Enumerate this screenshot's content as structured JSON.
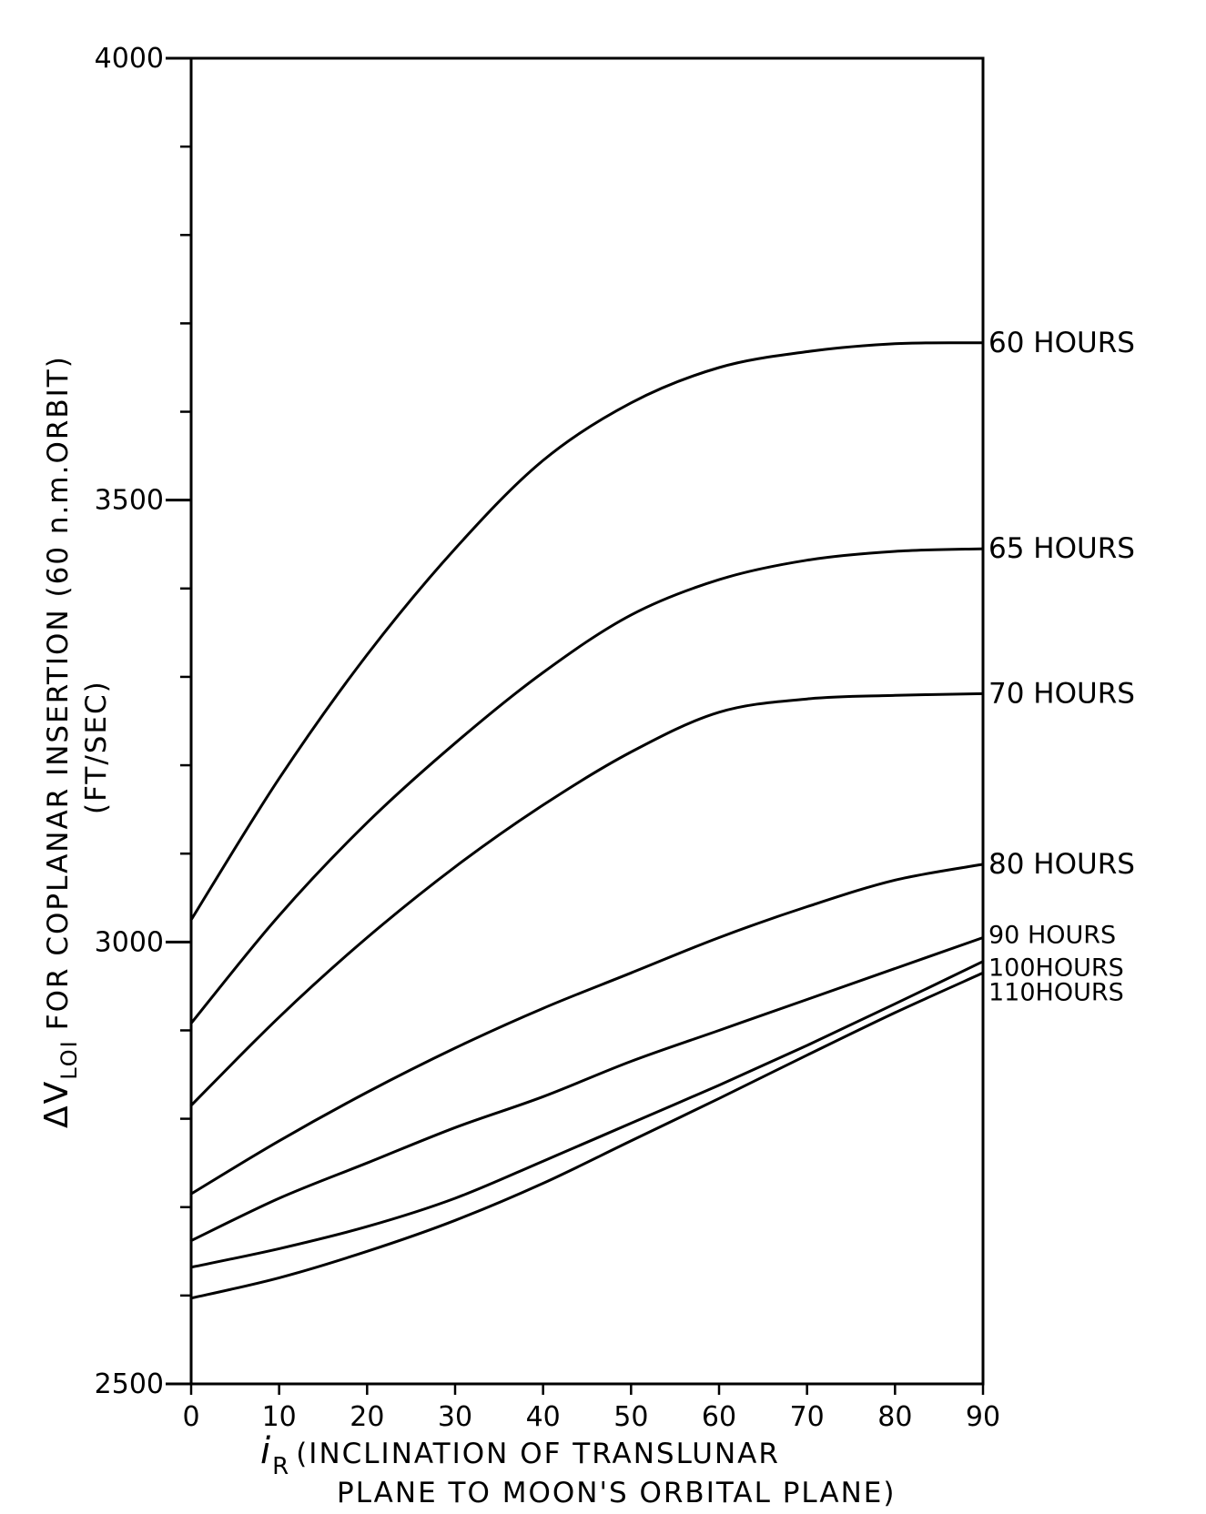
{
  "chart_data": {
    "type": "line",
    "title": "",
    "ylabel": "ΔV",
    "ylabel_subscript": "LOI",
    "ylabel_rest": "FOR COPLANAR INSERTION (60 n.m.ORBIT)",
    "ylabel_units": "(FT/SEC)",
    "xlabel_symbol": "i",
    "xlabel_subscript": "R",
    "xlabel_line1": "(INCLINATION OF TRANSLUNAR",
    "xlabel_line2": "PLANE TO MOON'S ORBITAL PLANE)",
    "xlim": [
      0,
      90
    ],
    "ylim": [
      2500,
      4000
    ],
    "x_ticks": [
      0,
      10,
      20,
      30,
      40,
      50,
      60,
      70,
      80,
      90
    ],
    "y_tick_labels": [
      "2500",
      "3000",
      "3500",
      "4000"
    ],
    "y_minor_ticks": [
      2600,
      2700,
      2800,
      2900,
      3100,
      3200,
      3300,
      3400,
      3600,
      3700,
      3800,
      3900
    ],
    "grid": false,
    "series": [
      {
        "name": "60 HOURS",
        "x": [
          0,
          10,
          20,
          30,
          40,
          50,
          60,
          70,
          80,
          90
        ],
        "y": [
          3025,
          3185,
          3325,
          3445,
          3545,
          3610,
          3650,
          3668,
          3677,
          3678
        ]
      },
      {
        "name": "65 HOURS",
        "x": [
          0,
          10,
          20,
          30,
          40,
          50,
          60,
          70,
          80,
          90
        ],
        "y": [
          2908,
          3030,
          3135,
          3225,
          3305,
          3370,
          3410,
          3432,
          3442,
          3445
        ]
      },
      {
        "name": "70 HOURS",
        "x": [
          0,
          10,
          20,
          30,
          40,
          50,
          60,
          70,
          80,
          90
        ],
        "y": [
          2815,
          2915,
          3005,
          3085,
          3155,
          3215,
          3260,
          3275,
          3279,
          3281
        ]
      },
      {
        "name": "80 HOURS",
        "x": [
          0,
          10,
          20,
          30,
          40,
          50,
          60,
          70,
          80,
          90
        ],
        "y": [
          2715,
          2775,
          2830,
          2880,
          2925,
          2965,
          3005,
          3040,
          3070,
          3088
        ]
      },
      {
        "name": "90 HOURS",
        "x": [
          0,
          10,
          20,
          30,
          40,
          50,
          60,
          70,
          80,
          90
        ],
        "y": [
          2662,
          2710,
          2750,
          2790,
          2825,
          2865,
          2900,
          2935,
          2970,
          3005
        ]
      },
      {
        "name": "100HOURS",
        "x": [
          0,
          10,
          20,
          30,
          40,
          50,
          60,
          70,
          80,
          90
        ],
        "y": [
          2632,
          2653,
          2678,
          2710,
          2752,
          2795,
          2838,
          2883,
          2930,
          2978
        ]
      },
      {
        "name": "110HOURS",
        "x": [
          0,
          10,
          20,
          30,
          40,
          50,
          60,
          70,
          80,
          90
        ],
        "y": [
          2597,
          2620,
          2650,
          2685,
          2727,
          2775,
          2823,
          2872,
          2920,
          2965
        ]
      }
    ],
    "legend_placement": "right-end-of-lines"
  }
}
